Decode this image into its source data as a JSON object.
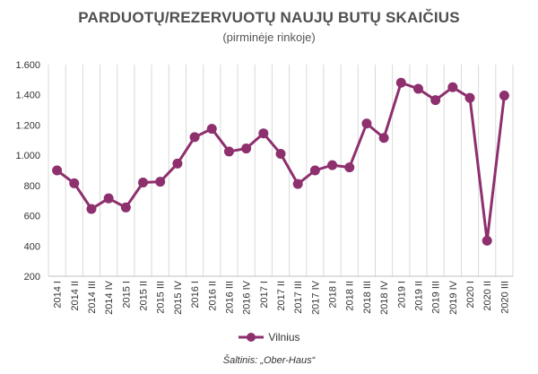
{
  "chart_data": {
    "type": "line",
    "title": "PARDUOTŲ/REZERVUOTŲ NAUJŲ BUTŲ SKAIČIUS",
    "subtitle": "(pirminėje rinkoje)",
    "categories": [
      "2014 I",
      "2014 II",
      "2014 III",
      "2014 IV",
      "2015 I",
      "2015 II",
      "2015 III",
      "2015 IV",
      "2016 I",
      "2016 II",
      "2016 III",
      "2016 IV",
      "2017 I",
      "2017 II",
      "2017 III",
      "2017 IV",
      "2018 I",
      "2018 II",
      "2018 III",
      "2018 IV",
      "2019 I",
      "2019 II",
      "2019 III",
      "2019 IV",
      "2020 I",
      "2020 II",
      "2020 III"
    ],
    "series": [
      {
        "name": "Vilnius",
        "values": [
          900,
          815,
          645,
          715,
          655,
          820,
          825,
          945,
          1120,
          1175,
          1025,
          1045,
          1145,
          1010,
          810,
          900,
          935,
          920,
          1210,
          1115,
          1480,
          1440,
          1365,
          1450,
          1380,
          435,
          1395
        ]
      }
    ],
    "ylim": [
      200,
      1600
    ],
    "yticks": [
      200,
      400,
      600,
      800,
      1000,
      1200,
      1400,
      1600
    ],
    "ytick_labels": [
      "200",
      "400",
      "600",
      "800",
      "1.000",
      "1.200",
      "1.400",
      "1.600"
    ],
    "grid": "vertical",
    "legend": "bottom",
    "color": "#8e2f6e",
    "source": "Šaltinis: „Ober-Haus“"
  }
}
